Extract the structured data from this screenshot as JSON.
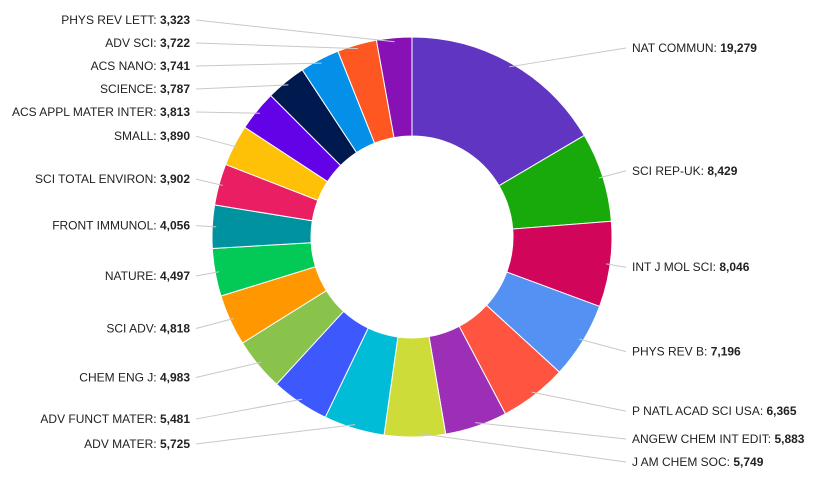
{
  "chart_data": {
    "type": "pie",
    "donut": true,
    "title": "",
    "legend": "none",
    "grid": false,
    "slices": [
      {
        "name": "NAT COMMUN",
        "value": 19279,
        "display": "19,279",
        "color": "#6035c2"
      },
      {
        "name": "SCI REP-UK",
        "value": 8429,
        "display": "8,429",
        "color": "#18a90a"
      },
      {
        "name": "INT J MOL SCI",
        "value": 8046,
        "display": "8,046",
        "color": "#d10559"
      },
      {
        "name": "PHYS REV B",
        "value": 7196,
        "display": "7,196",
        "color": "#5591f2"
      },
      {
        "name": "P NATL ACAD SCI USA",
        "value": 6365,
        "display": "6,365",
        "color": "#ff5540"
      },
      {
        "name": "ANGEW CHEM INT EDIT",
        "value": 5883,
        "display": "5,883",
        "color": "#9c2fb6"
      },
      {
        "name": "J AM CHEM SOC",
        "value": 5749,
        "display": "5,749",
        "color": "#cddc38"
      },
      {
        "name": "ADV MATER",
        "value": 5725,
        "display": "5,725",
        "color": "#00bcd6"
      },
      {
        "name": "ADV FUNCT MATER",
        "value": 5481,
        "display": "5,481",
        "color": "#3d58fd"
      },
      {
        "name": "CHEM ENG J",
        "value": 4983,
        "display": "4,983",
        "color": "#8ac34c"
      },
      {
        "name": "SCI ADV",
        "value": 4818,
        "display": "4,818",
        "color": "#ff9800"
      },
      {
        "name": "NATURE",
        "value": 4497,
        "display": "4,497",
        "color": "#03c957"
      },
      {
        "name": "FRONT IMMUNOL",
        "value": 4056,
        "display": "4,056",
        "color": "#00929f"
      },
      {
        "name": "SCI TOTAL ENVIRON",
        "value": 3902,
        "display": "3,902",
        "color": "#e91e63"
      },
      {
        "name": "SMALL",
        "value": 3890,
        "display": "3,890",
        "color": "#ffc108"
      },
      {
        "name": "ACS APPL MATER INTER",
        "value": 3813,
        "display": "3,813",
        "color": "#6301e7"
      },
      {
        "name": "SCIENCE",
        "value": 3787,
        "display": "3,787",
        "color": "#001a4f"
      },
      {
        "name": "ACS NANO",
        "value": 3741,
        "display": "3,741",
        "color": "#0490e9"
      },
      {
        "name": "ADV SCI",
        "value": 3722,
        "display": "3,722",
        "color": "#ff5722"
      },
      {
        "name": "PHYS REV LETT",
        "value": 3323,
        "display": "3,323",
        "color": "#8711b5"
      }
    ]
  }
}
